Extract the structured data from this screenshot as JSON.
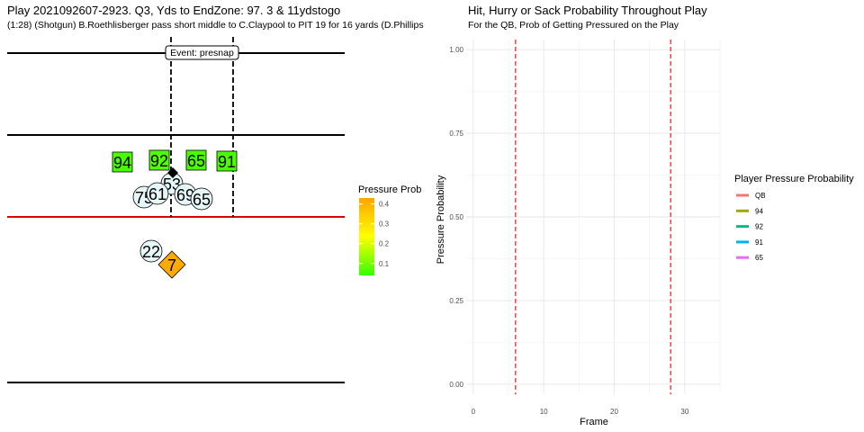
{
  "left": {
    "title": "Play 2021092607-2923. Q3, Yds to EndZone: 97. 3 & 11ydstogo",
    "subtitle": "(1:28) (Shotgun) B.Roethlisberger pass short middle to C.Claypool to PIT 19 for 16 yards (D.Phillips",
    "event_label": "Event: presnap",
    "colorbar": {
      "title": "Pressure Prob",
      "ticks": [
        "0.1",
        "0.2",
        "0.3",
        "0.4"
      ],
      "tick_values": [
        0.1,
        0.2,
        0.3,
        0.4
      ],
      "range": [
        0.04,
        0.43
      ],
      "color_low": "#33ff00",
      "color_mid": "#ffff00",
      "color_high": "#ffa500"
    },
    "players": [
      {
        "number": "94",
        "shape": "square",
        "prob": 0.06
      },
      {
        "number": "92",
        "shape": "square",
        "prob": 0.07
      },
      {
        "number": "65",
        "shape": "square",
        "prob": 0.06
      },
      {
        "number": "91",
        "shape": "square",
        "prob": 0.06
      },
      {
        "number": "53",
        "shape": "circle",
        "prob": null
      },
      {
        "number": "75",
        "shape": "circle",
        "prob": null
      },
      {
        "number": "61",
        "shape": "circle",
        "prob": null
      },
      {
        "number": "69",
        "shape": "circle",
        "prob": null
      },
      {
        "number": "65",
        "shape": "circle",
        "prob": null
      },
      {
        "number": "22",
        "shape": "circle",
        "prob": null
      },
      {
        "number": "7",
        "shape": "diamond",
        "prob": 0.42
      }
    ],
    "colors": {
      "field_line": "#000000",
      "los_line": "#dd0000",
      "offense_fill": "#e6f7fa",
      "ball": "#000000"
    }
  },
  "right": {
    "title": "Hit, Hurry or Sack Probability Throughout Play",
    "subtitle": "For the QB, Prob of Getting Pressured on the Play",
    "legend": {
      "title": "Player Pressure Probability",
      "entries": [
        {
          "label": "QB",
          "color": "#f8766d"
        },
        {
          "label": "94",
          "color": "#a3a500"
        },
        {
          "label": "92",
          "color": "#00bf7d"
        },
        {
          "label": "91",
          "color": "#00b0f6"
        },
        {
          "label": "65",
          "color": "#e76bf3"
        }
      ]
    }
  },
  "chart_data": {
    "type": "line",
    "title": "Hit, Hurry or Sack Probability Throughout Play",
    "subtitle": "For the QB, Prob of Getting Pressured on the Play",
    "xlabel": "Frame",
    "ylabel": "Pressure Probability",
    "xlim": [
      -1,
      35
    ],
    "ylim": [
      -0.03,
      1.03
    ],
    "x_ticks": [
      0,
      10,
      20,
      30
    ],
    "x_tick_labels": [
      "0",
      "10",
      "20",
      "30"
    ],
    "y_ticks": [
      0,
      0.25,
      0.5,
      0.75,
      1.0
    ],
    "y_tick_labels": [
      "0.00",
      "0.25",
      "0.50",
      "0.75",
      "1.00"
    ],
    "grid": true,
    "vlines": [
      {
        "x": 6,
        "style": "dashed",
        "color": "#ff0000"
      },
      {
        "x": 28,
        "style": "dashed",
        "color": "#ff0000"
      }
    ],
    "legend_position": "right",
    "series": [
      {
        "name": "QB",
        "values": []
      },
      {
        "name": "94",
        "values": []
      },
      {
        "name": "92",
        "values": []
      },
      {
        "name": "91",
        "values": []
      },
      {
        "name": "65",
        "values": []
      }
    ]
  }
}
